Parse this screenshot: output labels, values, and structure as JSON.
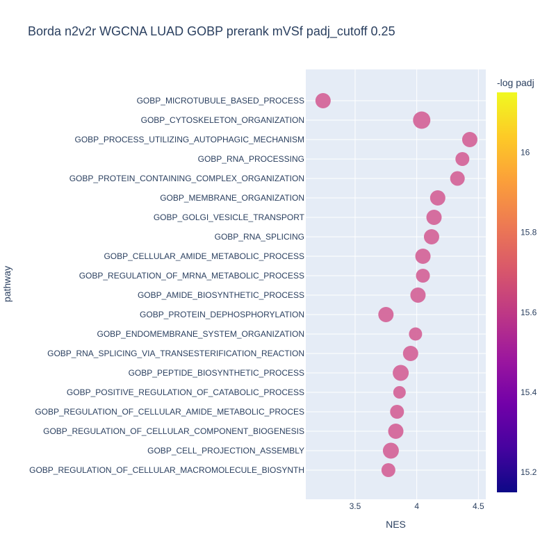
{
  "chart_data": {
    "type": "scatter",
    "title": "Borda n2v2r WGCNA LUAD GOBP prerank mVSf padj_cutoff 0.25",
    "xlabel": "NES",
    "ylabel": "pathway",
    "xlim": [
      3.1,
      4.56
    ],
    "xticks": [
      3.5,
      4,
      4.5
    ],
    "xtick_labels": [
      "3.5",
      "4",
      "4.5"
    ],
    "grid": true,
    "colorbar": {
      "title": "-log padj",
      "range": [
        15.15,
        16.15
      ],
      "ticks": [
        15.2,
        15.4,
        15.6,
        15.8,
        16
      ],
      "tick_labels": [
        "15.2",
        "15.4",
        "15.6",
        "15.8",
        "16"
      ],
      "colorscale": [
        "#0d0887",
        "#46039f",
        "#7201a8",
        "#9c179e",
        "#bd3786",
        "#d8576b",
        "#ed7953",
        "#fb9f3a",
        "#fdca26",
        "#f0f921"
      ]
    },
    "marker_value": 15.65,
    "marker_color": "#d4679a",
    "points": [
      {
        "pathway": "GOBP_MICROTUBULE_BASED_PROCESS",
        "nes": 3.24,
        "size": 11
      },
      {
        "pathway": "GOBP_CYTOSKELETON_ORGANIZATION",
        "nes": 4.04,
        "size": 12.5
      },
      {
        "pathway": "GOBP_PROCESS_UTILIZING_AUTOPHAGIC_MECHANISM",
        "nes": 4.43,
        "size": 11
      },
      {
        "pathway": "GOBP_RNA_PROCESSING",
        "nes": 4.37,
        "size": 10
      },
      {
        "pathway": "GOBP_PROTEIN_CONTAINING_COMPLEX_ORGANIZATION",
        "nes": 4.33,
        "size": 10.5
      },
      {
        "pathway": "GOBP_MEMBRANE_ORGANIZATION",
        "nes": 4.17,
        "size": 11
      },
      {
        "pathway": "GOBP_GOLGI_VESICLE_TRANSPORT",
        "nes": 4.14,
        "size": 11
      },
      {
        "pathway": "GOBP_RNA_SPLICING",
        "nes": 4.12,
        "size": 11
      },
      {
        "pathway": "GOBP_CELLULAR_AMIDE_METABOLIC_PROCESS",
        "nes": 4.05,
        "size": 11
      },
      {
        "pathway": "GOBP_REGULATION_OF_MRNA_METABOLIC_PROCESS",
        "nes": 4.05,
        "size": 10
      },
      {
        "pathway": "GOBP_AMIDE_BIOSYNTHETIC_PROCESS",
        "nes": 4.01,
        "size": 11
      },
      {
        "pathway": "GOBP_PROTEIN_DEPHOSPHORYLATION",
        "nes": 3.75,
        "size": 11
      },
      {
        "pathway": "GOBP_ENDOMEMBRANE_SYSTEM_ORGANIZATION",
        "nes": 3.99,
        "size": 9.5
      },
      {
        "pathway": "GOBP_RNA_SPLICING_VIA_TRANSESTERIFICATION_REACTION",
        "nes": 3.95,
        "size": 11
      },
      {
        "pathway": "GOBP_PEPTIDE_BIOSYNTHETIC_PROCESS",
        "nes": 3.87,
        "size": 11.5
      },
      {
        "pathway": "GOBP_POSITIVE_REGULATION_OF_CATABOLIC_PROCESS",
        "nes": 3.86,
        "size": 9
      },
      {
        "pathway": "GOBP_REGULATION_OF_CELLULAR_AMIDE_METABOLIC_PROCES",
        "nes": 3.84,
        "size": 10
      },
      {
        "pathway": "GOBP_REGULATION_OF_CELLULAR_COMPONENT_BIOGENESIS",
        "nes": 3.83,
        "size": 11
      },
      {
        "pathway": "GOBP_CELL_PROJECTION_ASSEMBLY",
        "nes": 3.79,
        "size": 11.5
      },
      {
        "pathway": "GOBP_REGULATION_OF_CELLULAR_MACROMOLECULE_BIOSYNTH",
        "nes": 3.77,
        "size": 10
      }
    ]
  }
}
